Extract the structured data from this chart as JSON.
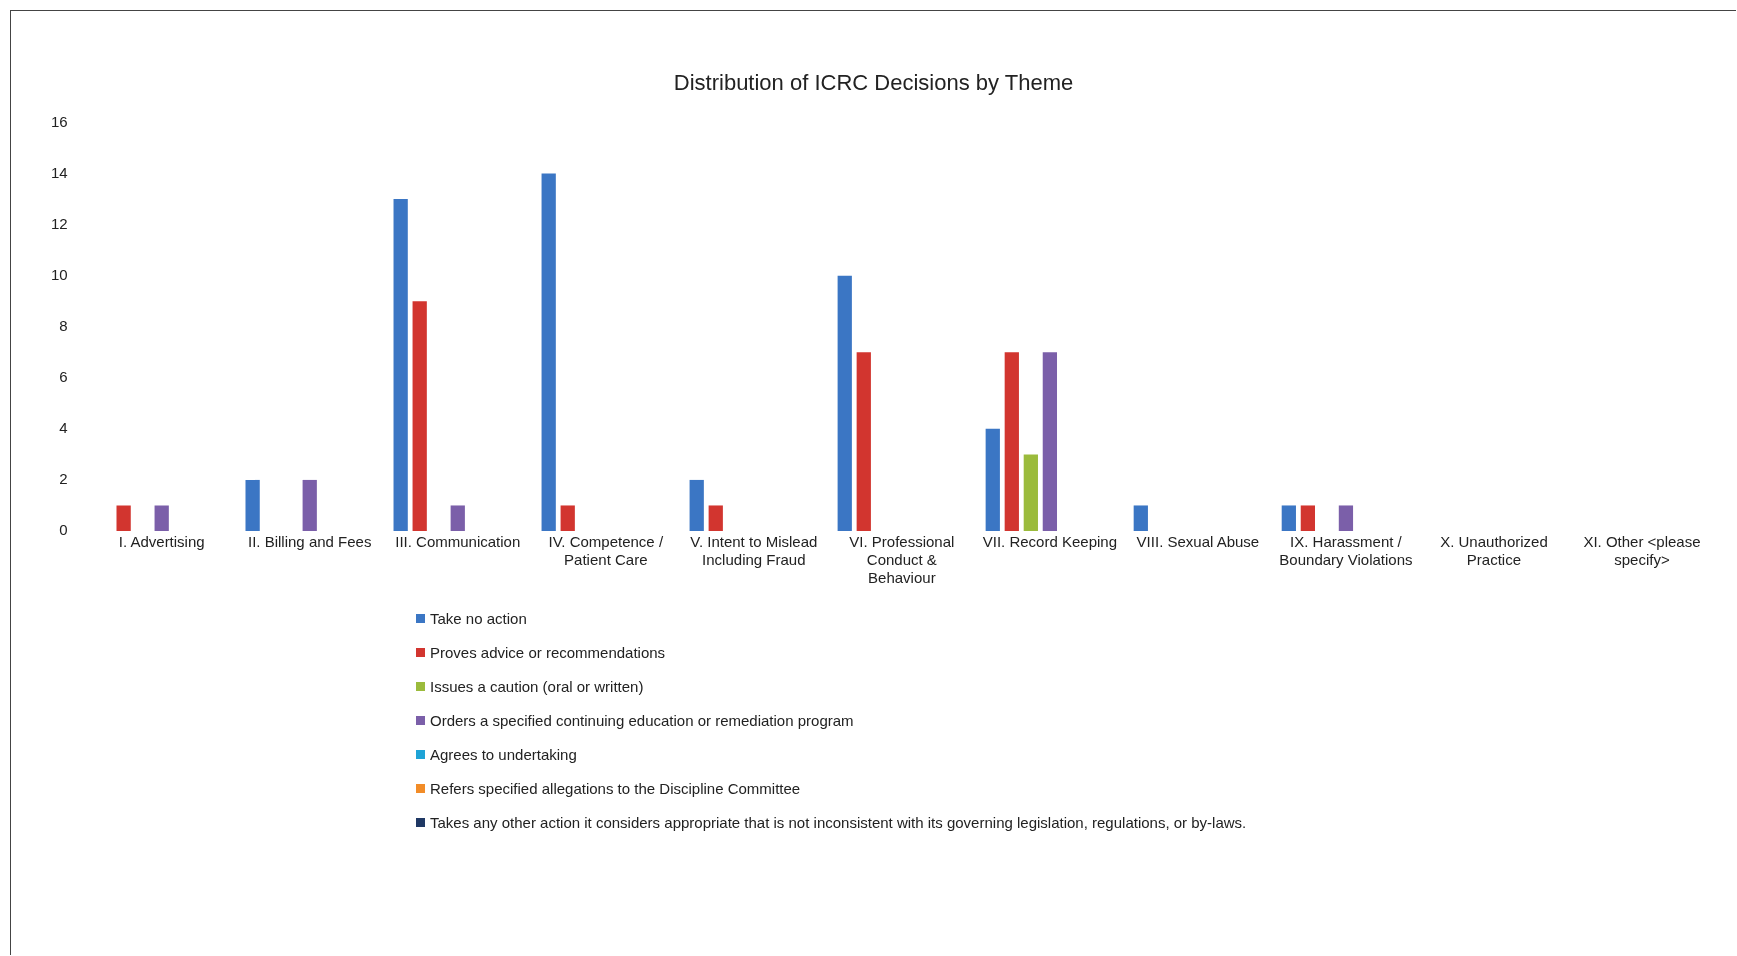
{
  "chart_data": {
    "type": "bar",
    "title": "Distribution of ICRC Decisions by Theme",
    "categories": [
      "I. Advertising",
      "II. Billing and Fees",
      "III. Communication",
      "IV. Competence / Patient Care",
      "V. Intent to Mislead Including Fraud",
      "VI. Professional Conduct & Behaviour",
      "VII. Record Keeping",
      "VIII. Sexual Abuse",
      "IX. Harassment / Boundary Violations",
      "X. Unauthorized Practice",
      "XI. Other <please specify>"
    ],
    "series": [
      {
        "name": "Take no action",
        "color": "#3b76c4",
        "values": [
          0,
          2,
          13,
          14,
          2,
          10,
          4,
          1,
          1,
          0,
          0
        ]
      },
      {
        "name": "Proves advice or recommendations",
        "color": "#d2352f",
        "values": [
          1,
          0,
          9,
          1,
          1,
          7,
          7,
          0,
          1,
          0,
          0
        ]
      },
      {
        "name": "Issues a caution (oral or written)",
        "color": "#9bbb3c",
        "values": [
          0,
          0,
          0,
          0,
          0,
          0,
          3,
          0,
          0,
          0,
          0
        ]
      },
      {
        "name": "Orders a specified continuing education or remediation program",
        "color": "#7b5fa9",
        "values": [
          1,
          2,
          1,
          0,
          0,
          0,
          7,
          0,
          1,
          0,
          0
        ]
      },
      {
        "name": "Agrees to undertaking",
        "color": "#1fa3d6",
        "values": [
          0,
          0,
          0,
          0,
          0,
          0,
          0,
          0,
          0,
          0,
          0
        ]
      },
      {
        "name": "Refers specified allegations to the Discipline Committee",
        "color": "#f28c28",
        "values": [
          0,
          0,
          0,
          0,
          0,
          0,
          0,
          0,
          0,
          0,
          0
        ]
      },
      {
        "name": "Takes any other action it considers appropriate that is not inconsistent with its governing legislation, regulations, or by-laws.",
        "color": "#1f3864",
        "values": [
          0,
          0,
          0,
          0,
          0,
          0,
          0,
          0,
          0,
          0,
          0
        ]
      }
    ],
    "ylim": [
      0,
      16
    ],
    "yticks": [
      0,
      2,
      4,
      6,
      8,
      10,
      12,
      14,
      16
    ],
    "grid": false,
    "legend": "bottom"
  }
}
